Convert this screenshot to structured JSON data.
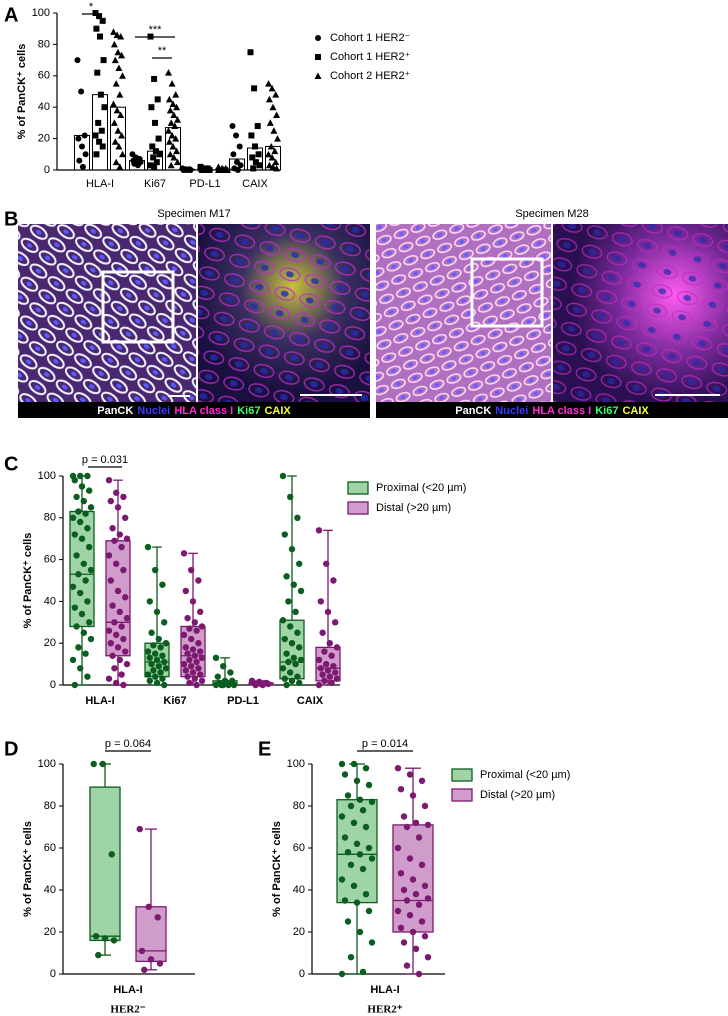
{
  "panel_labels": [
    "A",
    "B",
    "C",
    "D",
    "E"
  ],
  "chart_data": [
    {
      "type": "bar",
      "ylabel": "% of PanCK⁺ cells",
      "ylim": [
        0,
        100
      ],
      "yticks": [
        0,
        20,
        40,
        60,
        80,
        100
      ],
      "categories": [
        "HLA-I",
        "Ki67",
        "PD-L1",
        "CAIX"
      ],
      "series": [
        {
          "name": "Cohort 1 HER2⁻",
          "marker": "circle",
          "color": "#000000",
          "values": [
            22,
            6,
            0.5,
            7
          ],
          "points": [
            [
              70,
              50,
              22,
              20,
              15,
              10,
              6,
              2
            ],
            [
              10,
              8,
              7,
              6,
              5,
              5,
              4,
              3
            ],
            [
              1,
              0.5,
              0.5,
              0,
              0,
              0,
              0,
              0
            ],
            [
              28,
              22,
              15,
              10,
              5,
              3,
              1,
              0
            ]
          ]
        },
        {
          "name": "Cohort 1 HER2⁺",
          "marker": "square",
          "color": "#000000",
          "values": [
            48,
            12,
            0.5,
            14
          ],
          "points": [
            [
              100,
              98,
              95,
              90,
              85,
              70,
              62,
              48,
              40,
              30,
              25,
              22,
              18,
              15,
              10
            ],
            [
              85,
              58,
              45,
              40,
              30,
              20,
              15,
              12,
              10,
              8,
              5,
              3,
              2
            ],
            [
              2,
              1,
              1,
              0.5,
              0,
              0,
              0,
              0,
              0,
              0
            ],
            [
              75,
              52,
              28,
              22,
              15,
              10,
              8,
              5,
              3,
              1
            ]
          ]
        },
        {
          "name": "Cohort 2 HER2⁺",
          "marker": "triangle",
          "color": "#000000",
          "values": [
            40,
            27,
            0.5,
            15
          ],
          "points": [
            [
              88,
              86,
              85,
              80,
              75,
              73,
              70,
              65,
              60,
              55,
              48,
              42,
              38,
              35,
              30,
              25,
              22,
              18,
              15,
              10,
              5,
              2
            ],
            [
              62,
              55,
              48,
              45,
              42,
              40,
              38,
              35,
              32,
              30,
              28,
              25,
              22,
              20,
              18,
              15,
              12,
              10,
              8,
              5,
              3
            ],
            [
              2,
              1,
              1,
              0.5,
              0.5,
              0,
              0,
              0,
              0,
              0,
              0,
              0
            ],
            [
              55,
              52,
              48,
              45,
              40,
              35,
              30,
              25,
              20,
              15,
              12,
              10,
              8,
              5,
              3,
              2,
              1
            ]
          ]
        }
      ],
      "annotations": [
        "*",
        "***",
        "**"
      ]
    },
    {
      "type": "box",
      "ylabel": "% of PanCK⁺ cells",
      "ylim": [
        0,
        100
      ],
      "yticks": [
        0,
        20,
        40,
        60,
        80,
        100
      ],
      "categories": [
        "HLA-I",
        "Ki67",
        "PD-L1",
        "CAIX"
      ],
      "series": [
        {
          "name": "Proximal (<20 µm)",
          "color": "#0b5e1f",
          "fill": "#9fd4a6",
          "min": [
            0,
            0,
            0,
            0
          ],
          "q1": [
            28,
            4,
            0,
            3
          ],
          "median": [
            53,
            11,
            0,
            11
          ],
          "q3": [
            83,
            20,
            2,
            31
          ],
          "max": [
            100,
            66,
            13,
            100
          ],
          "points": [
            [
              100,
              100,
              100,
              98,
              95,
              93,
              90,
              88,
              85,
              83,
              82,
              80,
              78,
              75,
              72,
              70,
              66,
              62,
              58,
              55,
              53,
              50,
              47,
              44,
              40,
              37,
              34,
              30,
              28,
              25,
              22,
              18,
              15,
              12,
              8,
              4,
              0
            ],
            [
              66,
              55,
              48,
              40,
              35,
              30,
              25,
              22,
              20,
              19,
              18,
              16,
              15,
              14,
              13,
              12,
              11,
              10,
              9,
              8,
              7,
              6,
              5,
              4,
              3,
              2,
              1,
              0
            ],
            [
              13,
              9,
              6,
              4,
              2,
              2,
              1,
              1,
              0,
              0,
              0,
              0,
              0
            ],
            [
              100,
              90,
              80,
              72,
              65,
              58,
              52,
              48,
              45,
              40,
              35,
              31,
              28,
              25,
              22,
              20,
              18,
              15,
              13,
              12,
              11,
              10,
              8,
              6,
              4,
              3,
              2,
              1,
              0
            ]
          ]
        },
        {
          "name": "Distal (>20 µm)",
          "color": "#7b1a70",
          "fill": "#cf9ccb",
          "min": [
            0,
            0,
            0,
            0
          ],
          "q1": [
            14,
            4,
            0,
            2
          ],
          "median": [
            30,
            14,
            0.5,
            8
          ],
          "q3": [
            69,
            28,
            1,
            18
          ],
          "max": [
            98,
            63,
            2,
            74
          ],
          "points": [
            [
              98,
              92,
              90,
              88,
              85,
              80,
              75,
              72,
              70,
              69,
              66,
              62,
              58,
              55,
              50,
              45,
              42,
              38,
              35,
              32,
              30,
              28,
              26,
              24,
              22,
              20,
              18,
              16,
              14,
              12,
              10,
              8,
              5,
              3,
              1,
              0
            ],
            [
              63,
              55,
              50,
              45,
              40,
              35,
              32,
              30,
              28,
              27,
              26,
              24,
              22,
              20,
              18,
              17,
              16,
              15,
              14,
              13,
              12,
              11,
              10,
              9,
              8,
              7,
              6,
              5,
              4,
              3,
              2,
              1,
              0
            ],
            [
              2,
              1.5,
              1,
              1,
              0.5,
              0.5,
              0,
              0
            ],
            [
              74,
              58,
              50,
              40,
              35,
              30,
              25,
              20,
              18,
              16,
              14,
              12,
              10,
              9,
              8,
              7,
              6,
              5,
              4,
              3,
              2,
              1,
              0
            ]
          ]
        }
      ],
      "annotations": [
        "p = 0.031"
      ],
      "legend": true
    },
    {
      "type": "box",
      "ylabel": "% of PanCK⁺ cells",
      "xlabel": "HER2⁻",
      "ylim": [
        0,
        100
      ],
      "yticks": [
        0,
        20,
        40,
        60,
        80,
        100
      ],
      "categories": [
        "HLA-I"
      ],
      "series": [
        {
          "name": "Proximal (<20 µm)",
          "color": "#0b5e1f",
          "fill": "#9fd4a6",
          "min": [
            9
          ],
          "q1": [
            16
          ],
          "median": [
            18
          ],
          "q3": [
            89
          ],
          "max": [
            100
          ],
          "points": [
            [
              100,
              100,
              57,
              18,
              17,
              16,
              9
            ]
          ]
        },
        {
          "name": "Distal (>20 µm)",
          "color": "#7b1a70",
          "fill": "#cf9ccb",
          "min": [
            2
          ],
          "q1": [
            6
          ],
          "median": [
            11
          ],
          "q3": [
            32
          ],
          "max": [
            69
          ],
          "points": [
            [
              69,
              32,
              27,
              11,
              7,
              5,
              2
            ]
          ]
        }
      ],
      "annotations": [
        "p = 0.064"
      ],
      "legend": false
    },
    {
      "type": "box",
      "ylabel": "% of PanCK⁺ cells",
      "xlabel": "HER2⁺",
      "ylim": [
        0,
        100
      ],
      "yticks": [
        0,
        20,
        40,
        60,
        80,
        100
      ],
      "categories": [
        "HLA-I"
      ],
      "series": [
        {
          "name": "Proximal (<20 µm)",
          "color": "#0b5e1f",
          "fill": "#9fd4a6",
          "min": [
            0
          ],
          "q1": [
            34
          ],
          "median": [
            57
          ],
          "q3": [
            83
          ],
          "max": [
            100
          ],
          "points": [
            [
              100,
              100,
              98,
              95,
              92,
              90,
              85,
              83,
              82,
              80,
              78,
              75,
              72,
              70,
              65,
              62,
              60,
              58,
              57,
              55,
              52,
              50,
              45,
              42,
              38,
              35,
              34,
              30,
              25,
              20,
              15,
              8,
              1,
              0
            ]
          ]
        },
        {
          "name": "Distal (>20 µm)",
          "color": "#7b1a70",
          "fill": "#cf9ccb",
          "min": [
            0
          ],
          "q1": [
            20
          ],
          "median": [
            35
          ],
          "q3": [
            71
          ],
          "max": [
            98
          ],
          "points": [
            [
              98,
              95,
              92,
              88,
              85,
              80,
              75,
              72,
              71,
              70,
              65,
              60,
              55,
              52,
              48,
              45,
              42,
              40,
              38,
              36,
              35,
              33,
              30,
              28,
              25,
              22,
              20,
              18,
              15,
              12,
              8,
              4,
              0
            ]
          ]
        }
      ],
      "annotations": [
        "p = 0.014"
      ],
      "legend": true
    }
  ],
  "micrographs": [
    {
      "title": "Specimen M17",
      "stains": [
        {
          "label": "PanCK",
          "color": "#ffffff"
        },
        {
          "label": "Nuclei",
          "color": "#3a3aff"
        },
        {
          "label": "HLA class I",
          "color": "#ff2bd6"
        },
        {
          "label": "Ki67",
          "color": "#3cff6a"
        },
        {
          "label": "CAIX",
          "color": "#ffff33"
        }
      ]
    },
    {
      "title": "Specimen M28",
      "stains": [
        {
          "label": "PanCK",
          "color": "#ffffff"
        },
        {
          "label": "Nuclei",
          "color": "#3a3aff"
        },
        {
          "label": "HLA class I",
          "color": "#ff2bd6"
        },
        {
          "label": "Ki67",
          "color": "#3cff6a"
        },
        {
          "label": "CAIX",
          "color": "#ffff33"
        }
      ]
    }
  ]
}
